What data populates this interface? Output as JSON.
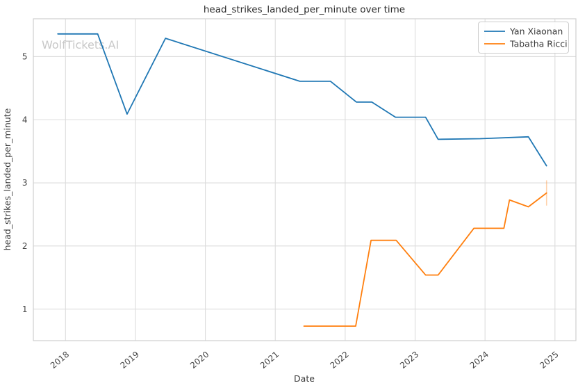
{
  "watermark": "WolfTickets.AI",
  "chart_data": {
    "type": "line",
    "title": "head_strikes_landed_per_minute over time",
    "xlabel": "Date",
    "ylabel": "head_strikes_landed_per_minute",
    "legend_position": "upper right",
    "grid": true,
    "x_range": [
      2017.54,
      2025.3
    ],
    "y_range": [
      0.5,
      5.6
    ],
    "x_tick_values": [
      2018,
      2019,
      2020,
      2021,
      2022,
      2023,
      2024,
      2025
    ],
    "x_tick_labels": [
      "2018",
      "2019",
      "2020",
      "2021",
      "2022",
      "2023",
      "2024",
      "2025"
    ],
    "y_tick_values": [
      1,
      2,
      3,
      4,
      5
    ],
    "y_tick_labels": [
      "1",
      "2",
      "3",
      "4",
      "5"
    ],
    "series": [
      {
        "name": "Yan Xiaonan",
        "color": "#1f77b4",
        "points": [
          [
            2017.89,
            5.36
          ],
          [
            2018.46,
            5.36
          ],
          [
            2018.88,
            4.09
          ],
          [
            2019.43,
            5.29
          ],
          [
            2021.35,
            4.61
          ],
          [
            2021.79,
            4.61
          ],
          [
            2022.16,
            4.28
          ],
          [
            2022.38,
            4.28
          ],
          [
            2022.72,
            4.04
          ],
          [
            2023.15,
            4.04
          ],
          [
            2023.33,
            3.69
          ],
          [
            2023.93,
            3.7
          ],
          [
            2024.62,
            3.73
          ],
          [
            2024.88,
            3.27
          ]
        ]
      },
      {
        "name": "Tabatha Ricci",
        "color": "#ff7f0e",
        "points": [
          [
            2021.41,
            0.73
          ],
          [
            2022.15,
            0.73
          ],
          [
            2022.37,
            2.09
          ],
          [
            2022.73,
            2.09
          ],
          [
            2023.15,
            1.54
          ],
          [
            2023.33,
            1.54
          ],
          [
            2023.84,
            2.28
          ],
          [
            2024.27,
            2.28
          ],
          [
            2024.35,
            2.73
          ],
          [
            2024.62,
            2.62
          ],
          [
            2024.88,
            2.84
          ]
        ],
        "last_point_error_bar": {
          "x": 2024.88,
          "y_low": 2.64,
          "y_high": 3.04,
          "opacity": 0.35
        }
      }
    ],
    "colors": {
      "grid": "#dcdcdc",
      "spine": "#cfcfcf",
      "background": "#ffffff",
      "tick_text": "#444444",
      "title_text": "#2b2b2b",
      "watermark": "#c8c8c8"
    }
  }
}
